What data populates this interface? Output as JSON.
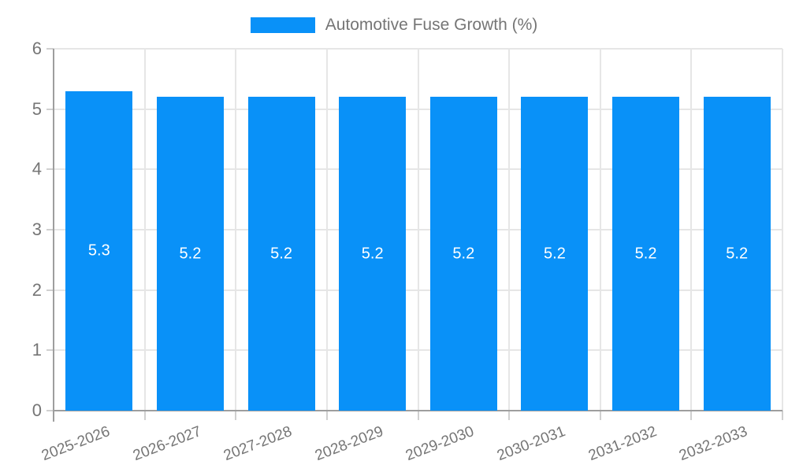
{
  "legend": {
    "label": "Automotive Fuse Growth (%)",
    "swatch_color": "#0991f8"
  },
  "chart_data": {
    "type": "bar",
    "title": "Automotive Fuse Growth (%)",
    "categories": [
      "2025-2026",
      "2026-2027",
      "2027-2028",
      "2028-2029",
      "2029-2030",
      "2030-2031",
      "2031-2032",
      "2032-2033"
    ],
    "values": [
      5.3,
      5.2,
      5.2,
      5.2,
      5.2,
      5.2,
      5.2,
      5.2
    ],
    "value_labels": [
      "5.3",
      "5.2",
      "5.2",
      "5.2",
      "5.2",
      "5.2",
      "5.2",
      "5.2"
    ],
    "xlabel": "",
    "ylabel": "",
    "ylim": [
      0,
      6
    ],
    "yticks": [
      0,
      1,
      2,
      3,
      4,
      5,
      6
    ],
    "ytick_labels": [
      "0",
      "1",
      "2",
      "3",
      "4",
      "5",
      "6"
    ],
    "grid": "on",
    "legend_position": "top",
    "bar_color": "#0991f8",
    "value_label_color": "#ffffff"
  },
  "colors": {
    "grid_line": "#e6e6e6",
    "axis_line": "#9e9e9e",
    "tick_mark": "#d0d0d0",
    "text": "#757575",
    "background": "#ffffff"
  }
}
